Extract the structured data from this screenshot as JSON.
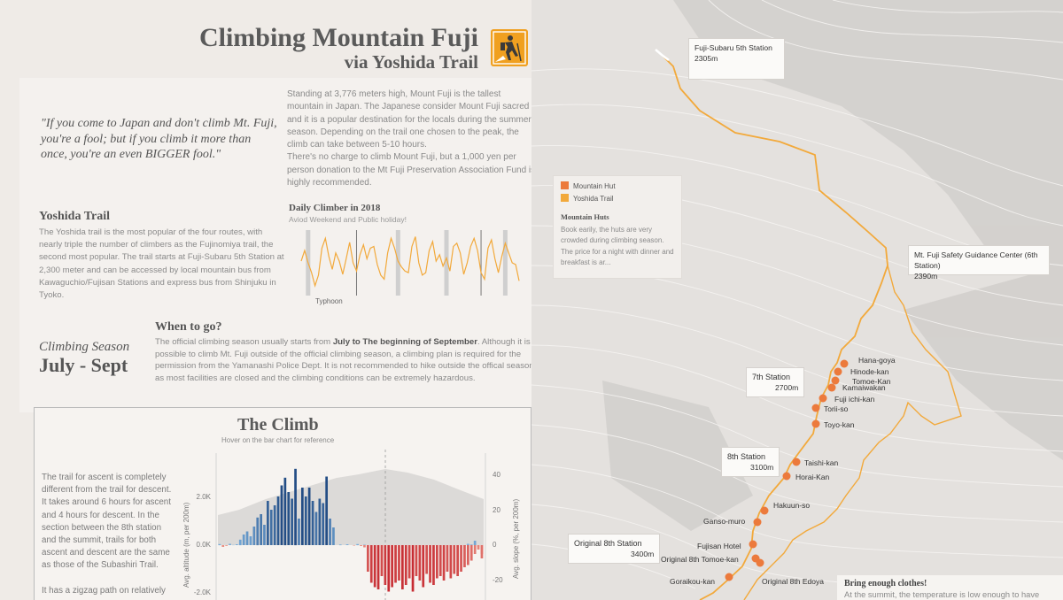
{
  "header": {
    "title": "Climbing Mountain Fuji",
    "subtitle": "via Yoshida Trail",
    "logo_icon": "hiker-icon"
  },
  "intro": "Standing at 3,776 meters high, Mount Fuji is the tallest mountain in Japan. The Japanese consider Mount Fuji sacred and it is a popular destination for the locals during the summer season.  Depending on the trail one chosen to the peak, the climb can take between 5-10 hours.\nThere's no charge to climb Mount Fuji, but a 1,000 yen per person donation to the Mt Fuji Preservation Association Fund is highly recommended.",
  "quote": "\"If you come to Japan and don't climb Mt. Fuji, you're a fool; but if you climb it more than once, you're an even BIGGER fool.\"",
  "yoshida": {
    "heading": "Yoshida Trail",
    "body": "The Yoshida trail is the most popular of the four routes, with nearly triple the number of climbers as the Fujinomiya trail, the second most popular. The trail starts at Fuji-Subaru 5th Station at 2,300 meter and can be accessed by local mountain bus from Kawaguchio/Fujisan Stations and express bus from Shinjuku in Tyoko."
  },
  "daily": {
    "heading": "Daily Climber in 2018",
    "subheading": "Aviod Weekend and Public holiday!",
    "annotation": "Typhoon"
  },
  "season": {
    "label": "Climbing Season",
    "value": "July - Sept"
  },
  "when": {
    "heading": "When to go?",
    "body_pre": "The official climbing season usually starts from ",
    "body_bold": "July to The beginning of September",
    "body_post": ". Although it is possible to climb Mt. Fuji outside of the official climbing season, a climbing plan is required for the permission from the Yamanashi Police Dept. It is not recommended to hike outside the offical season as most facilities are closed and  the climbing conditions can be extremely hazardous."
  },
  "climb": {
    "title": "The Climb",
    "subtitle": "Hover on the bar chart for reference",
    "text1": "The trail for ascent is completely different from the trail for descent. It takes around 6 hours for ascent and 4 hours for descent. In the section between the 8th station and the summit, trails for both ascent and descent are the same as those of the Subashiri Trail.",
    "text2": "It has a zigzag path on relatively"
  },
  "legend": {
    "items": [
      "Mountain Hut",
      "Yoshida Trail"
    ],
    "huts_heading": "Mountain Huts",
    "huts_body": "Book earily, the huts are very crowded during climbing season. The price for a night with dinner and breakfast is ar..."
  },
  "map": {
    "stations": [
      {
        "name": "Fuji-Subaru 5th Station",
        "alt": "2305m"
      },
      {
        "name": "Mt. Fuji Safety Guidance Center (6th Station)",
        "alt": "2390m"
      },
      {
        "name": "7th Station",
        "alt": "2700m"
      },
      {
        "name": "8th Station",
        "alt": "3100m"
      },
      {
        "name": "Original 8th Station",
        "alt": "3400m"
      }
    ],
    "huts": [
      "Hana-goya",
      "Hinode-kan",
      "Tomoe-Kan",
      "Kamaiwakan",
      "Fuji ichi-kan",
      "Torii-so",
      "Toyo-kan",
      "Taishi-kan",
      "Horai-Kan",
      "Hakuun-so",
      "Ganso-muro",
      "Fujisan Hotel",
      "Original 8th Tomoe-kan",
      "Goraikou-kan",
      "Original 8th Edoya"
    ]
  },
  "clothes": {
    "heading": "Bring enough clothes!",
    "body": "At the summit, the temperature is low enough to have"
  },
  "colors": {
    "trail": "#f2a93b",
    "hut": "#ec7a3c",
    "ascent_light": "#7aaedc",
    "ascent_dark": "#234d85",
    "descent_light": "#e98c80",
    "descent_dark": "#c01a24",
    "mountain": "#dcdad8"
  },
  "chart_data": [
    {
      "type": "line",
      "title": "Daily Climber in 2018",
      "subtitle": "Aviod Weekend and Public holiday!",
      "x_count": 64,
      "values": [
        42,
        55,
        40,
        28,
        12,
        25,
        58,
        70,
        48,
        32,
        52,
        42,
        26,
        45,
        65,
        40,
        30,
        50,
        62,
        45,
        58,
        60,
        38,
        25,
        20,
        52,
        70,
        58,
        42,
        35,
        30,
        28,
        60,
        72,
        40,
        25,
        28,
        55,
        66,
        42,
        50,
        36,
        46,
        30,
        60,
        64,
        52,
        26,
        40,
        60,
        70,
        55,
        28,
        20,
        58,
        68,
        45,
        28,
        48,
        64,
        52,
        40,
        38,
        18
      ],
      "highlight_bars_x": [
        2,
        28,
        42,
        59
      ],
      "thin_lines_x": [
        16,
        52
      ],
      "annotations": [
        "Typhoon"
      ]
    },
    {
      "type": "bar",
      "title": "The Climb",
      "subtitle": "Hover on the bar chart for reference",
      "y_left_label": "Avg. altitude (m, per 200m)",
      "y_left_ticks": [
        "2.0K",
        "0.0K",
        "-2.0K"
      ],
      "y_right_label": "Avg. slope (%, per 200m)",
      "y_right_ticks": [
        "40",
        "20",
        "0",
        "-20"
      ],
      "series": [
        {
          "values": [
            0.5,
            -0.8,
            -0.3,
            0.6,
            0.1,
            0.4,
            2.5,
            4.8,
            6.2,
            4.0,
            8.4,
            12.5,
            14.0,
            9.2,
            20.0,
            16.0,
            18.0,
            22.0,
            27.0,
            30.5,
            24.0,
            21.0,
            34.5,
            12.0,
            26.0,
            22.0,
            26.0,
            20.0,
            15.0,
            21.0,
            19.0,
            31.0,
            12.0,
            8.0,
            0,
            0.3,
            0,
            0.4,
            0,
            -0.2,
            0.5,
            -0.4,
            0.2,
            0,
            0,
            0,
            0,
            0,
            0,
            0,
            0,
            0,
            0,
            0,
            0,
            0,
            0,
            0,
            0,
            0,
            0,
            0,
            0,
            0,
            0,
            0,
            0,
            0,
            0,
            0,
            0,
            -0.4,
            0.6,
            0.3,
            2.0,
            -0.8,
            -4.0
          ]
        },
        {
          "values": [
            0,
            0,
            0,
            0,
            0,
            0,
            0,
            0,
            0,
            0,
            0,
            0,
            0,
            0,
            0,
            0,
            0,
            0,
            0,
            0,
            0,
            0,
            0,
            0,
            0,
            0,
            0,
            0,
            0,
            0,
            0,
            0,
            0,
            0,
            0,
            0,
            0,
            0,
            0,
            0,
            0,
            0,
            -1.0,
            -12.0,
            -17.0,
            -19.0,
            -20.0,
            -14.0,
            -18.0,
            -21.0,
            -19.0,
            -17.0,
            -16.0,
            -20.0,
            -18.0,
            -15.0,
            -21.0,
            -14.0,
            -16.0,
            -19.0,
            -13.0,
            -17.0,
            -18.0,
            -15.0,
            -14.0,
            -16.0,
            -12.0,
            -15.0,
            -13.0,
            -14.0,
            -12.0,
            -10.0,
            -9.0,
            -7.0,
            -4.0,
            -2.0,
            -6.0
          ]
        }
      ]
    }
  ]
}
